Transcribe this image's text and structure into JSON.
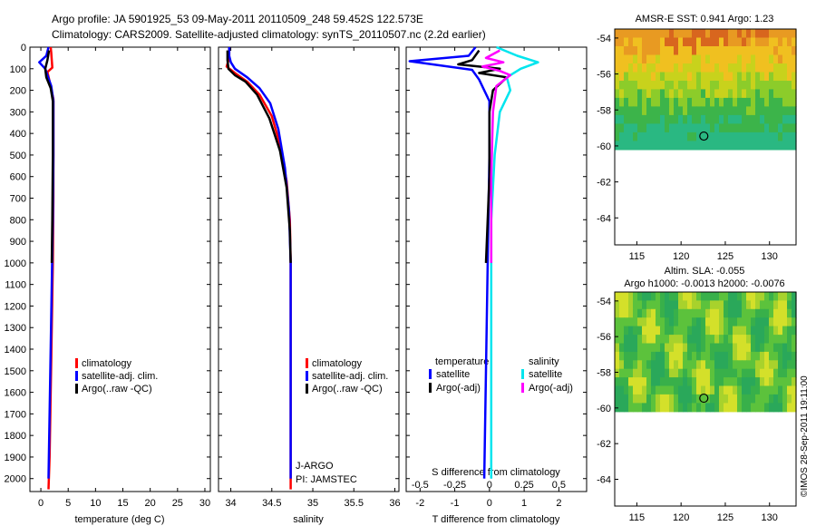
{
  "header": {
    "line1": "Argo profile: JA 5901925_53 09-May-2011 20110509_248 59.452S 122.573E",
    "line2": "Climatology: CARS2009. Satellite-adjusted climatology: synTS_20110507.nc (2.2d earlier)"
  },
  "footer": {
    "credit": "©IMOS 28-Sep-2011 19:11:00"
  },
  "colors": {
    "climatology": "#ff0000",
    "satellite": "#0000ff",
    "argo": "#000000",
    "salinity_satellite": "#00e5ee",
    "salinity_argo": "#ff00ff"
  },
  "chart_data": [
    {
      "type": "line",
      "id": "temperature",
      "xlabel": "temperature (deg C)",
      "ylabel": "",
      "xlim": [
        -2,
        31
      ],
      "ylim": [
        2060,
        0
      ],
      "x_ticks": [
        0,
        5,
        10,
        15,
        20,
        25,
        30
      ],
      "y_ticks": [
        0,
        100,
        200,
        300,
        400,
        500,
        600,
        700,
        800,
        900,
        1000,
        1100,
        1200,
        1300,
        1400,
        1500,
        1600,
        1700,
        1800,
        1900,
        2000
      ],
      "legend": {
        "placement": "lower-middle",
        "entries": [
          "climatology",
          "satellite-adj. clim.",
          "Argo(..raw -QC)"
        ]
      },
      "series": [
        {
          "name": "climatology",
          "color": "#ff0000",
          "points": [
            [
              1.8,
              0
            ],
            [
              1.9,
              25
            ],
            [
              2.0,
              60
            ],
            [
              2.1,
              95
            ],
            [
              1.2,
              115
            ],
            [
              1.7,
              170
            ],
            [
              2.3,
              240
            ],
            [
              2.3,
              400
            ],
            [
              2.3,
              700
            ],
            [
              2.2,
              1000
            ],
            [
              2.0,
              1300
            ],
            [
              1.8,
              1600
            ],
            [
              1.6,
              1900
            ],
            [
              1.4,
              2050
            ]
          ]
        },
        {
          "name": "satellite-adj. clim.",
          "color": "#0000ff",
          "points": [
            [
              1.4,
              0
            ],
            [
              1.0,
              40
            ],
            [
              -0.3,
              70
            ],
            [
              0.8,
              100
            ],
            [
              1.2,
              130
            ],
            [
              1.9,
              180
            ],
            [
              2.3,
              250
            ],
            [
              2.3,
              500
            ],
            [
              2.2,
              800
            ],
            [
              2.0,
              1100
            ],
            [
              1.8,
              1400
            ],
            [
              1.6,
              1700
            ],
            [
              1.4,
              2000
            ]
          ]
        },
        {
          "name": "Argo(..raw -QC)",
          "color": "#000000",
          "points": [
            [
              1.5,
              15
            ],
            [
              1.2,
              60
            ],
            [
              0.8,
              100
            ],
            [
              1.0,
              140
            ],
            [
              1.8,
              190
            ],
            [
              2.2,
              250
            ],
            [
              2.2,
              500
            ],
            [
              2.1,
              800
            ],
            [
              2.0,
              1000
            ]
          ]
        }
      ]
    },
    {
      "type": "line",
      "id": "salinity",
      "xlabel": "salinity",
      "ylabel": "",
      "xlim": [
        33.85,
        36.05
      ],
      "ylim": [
        2060,
        0
      ],
      "x_ticks": [
        34,
        34.5,
        35,
        35.5,
        36
      ],
      "legend": {
        "placement": "lower-right",
        "entries": [
          "climatology",
          "satellite-adj. clim.",
          "Argo(..raw -QC)"
        ]
      },
      "annotations": [
        "J-ARGO",
        "PI: JAMSTEC"
      ],
      "series": [
        {
          "name": "climatology",
          "color": "#ff0000",
          "points": [
            [
              33.98,
              0
            ],
            [
              33.98,
              50
            ],
            [
              33.95,
              90
            ],
            [
              34.05,
              120
            ],
            [
              34.2,
              160
            ],
            [
              34.35,
              220
            ],
            [
              34.5,
              320
            ],
            [
              34.6,
              450
            ],
            [
              34.68,
              620
            ],
            [
              34.72,
              800
            ],
            [
              34.73,
              1000
            ],
            [
              34.73,
              1200
            ],
            [
              34.73,
              1500
            ],
            [
              34.73,
              1800
            ],
            [
              34.73,
              2050
            ]
          ]
        },
        {
          "name": "satellite-adj. clim.",
          "color": "#0000ff",
          "points": [
            [
              33.98,
              0
            ],
            [
              33.98,
              40
            ],
            [
              34.0,
              70
            ],
            [
              34.05,
              100
            ],
            [
              34.2,
              140
            ],
            [
              34.35,
              190
            ],
            [
              34.48,
              260
            ],
            [
              34.58,
              380
            ],
            [
              34.66,
              560
            ],
            [
              34.71,
              760
            ],
            [
              34.73,
              1000
            ],
            [
              34.73,
              1300
            ],
            [
              34.73,
              1600
            ],
            [
              34.73,
              1900
            ],
            [
              34.73,
              2000
            ]
          ]
        },
        {
          "name": "Argo(..raw -QC)",
          "color": "#000000",
          "points": [
            [
              33.96,
              15
            ],
            [
              33.96,
              60
            ],
            [
              33.97,
              100
            ],
            [
              34.05,
              130
            ],
            [
              34.18,
              160
            ],
            [
              34.32,
              220
            ],
            [
              34.47,
              330
            ],
            [
              34.6,
              480
            ],
            [
              34.68,
              650
            ],
            [
              34.72,
              850
            ],
            [
              34.73,
              1000
            ]
          ]
        }
      ]
    },
    {
      "type": "line",
      "id": "differences",
      "xlabel": "T difference from climatology",
      "x2label": "S difference from climatology",
      "ylabel": "",
      "xlim": [
        -2.4,
        2.8
      ],
      "ylim": [
        2060,
        0
      ],
      "x_ticks": [
        -2,
        -1,
        0,
        1,
        2
      ],
      "x2_ticks": [
        "-0.5",
        "-0.25",
        "0",
        "0.25",
        "0.5"
      ],
      "x2_tick_values": [
        -2,
        -1,
        0,
        1,
        2
      ],
      "legend": {
        "placement": "lower-middle",
        "group_titles": [
          "temperature",
          "salinity"
        ],
        "entries": [
          "satellite",
          "Argo(-adj)",
          "satellite",
          "Argo(-adj)"
        ]
      },
      "series": [
        {
          "name": "satellite",
          "group": "temperature",
          "color": "#0000ff",
          "points": [
            [
              -0.4,
              0
            ],
            [
              -0.6,
              40
            ],
            [
              -2.3,
              65
            ],
            [
              -0.5,
              105
            ],
            [
              -0.3,
              150
            ],
            [
              0.0,
              250
            ],
            [
              0.0,
              500
            ],
            [
              -0.05,
              1000
            ],
            [
              -0.1,
              1500
            ],
            [
              -0.15,
              2000
            ]
          ]
        },
        {
          "name": "Argo(-adj)",
          "group": "temperature",
          "color": "#000000",
          "points": [
            [
              -0.3,
              15
            ],
            [
              -0.5,
              60
            ],
            [
              -0.9,
              80
            ],
            [
              0.3,
              100
            ],
            [
              -0.3,
              120
            ],
            [
              0.5,
              140
            ],
            [
              0.1,
              200
            ],
            [
              0.0,
              300
            ],
            [
              0.0,
              600
            ],
            [
              -0.1,
              1000
            ]
          ]
        },
        {
          "name": "satellite",
          "group": "salinity",
          "color": "#00e5ee",
          "points": [
            [
              0.2,
              0
            ],
            [
              0.8,
              40
            ],
            [
              1.4,
              70
            ],
            [
              0.9,
              100
            ],
            [
              0.5,
              140
            ],
            [
              0.6,
              200
            ],
            [
              0.3,
              300
            ],
            [
              0.15,
              500
            ],
            [
              0.05,
              800
            ],
            [
              0.05,
              1200
            ],
            [
              0.05,
              1600
            ],
            [
              0.05,
              2000
            ]
          ]
        },
        {
          "name": "Argo(-adj)",
          "group": "salinity",
          "color": "#ff00ff",
          "points": [
            [
              0.3,
              15
            ],
            [
              -0.1,
              50
            ],
            [
              0.4,
              70
            ],
            [
              -0.2,
              90
            ],
            [
              0.3,
              110
            ],
            [
              0.6,
              130
            ],
            [
              0.2,
              180
            ],
            [
              0.1,
              300
            ],
            [
              0.05,
              600
            ],
            [
              0.05,
              1000
            ]
          ]
        }
      ]
    },
    {
      "type": "heatmap",
      "id": "sst_map",
      "title": "AMSR-E SST: 0.941  Argo: 1.23",
      "xlim": [
        112.5,
        133
      ],
      "ylim": [
        -65.5,
        -53.5
      ],
      "x_ticks": [
        115,
        120,
        125,
        130
      ],
      "y_ticks": [
        -54,
        -56,
        -58,
        -60,
        -62,
        -64
      ],
      "data_extent_lat": [
        -60.2,
        -53.5
      ],
      "marker": {
        "lon": 122.573,
        "lat": -59.452
      }
    },
    {
      "type": "heatmap",
      "id": "sla_map",
      "title": "Altim. SLA: -0.055",
      "subtitle": "Argo h1000: -0.0013 h2000: -0.0076",
      "xlim": [
        112.5,
        133
      ],
      "ylim": [
        -65.5,
        -53.5
      ],
      "x_ticks": [
        115,
        120,
        125,
        130
      ],
      "y_ticks": [
        -54,
        -56,
        -58,
        -60,
        -62,
        -64
      ],
      "data_extent_lat": [
        -60.2,
        -53.5
      ],
      "marker": {
        "lon": 122.573,
        "lat": -59.452
      }
    }
  ]
}
